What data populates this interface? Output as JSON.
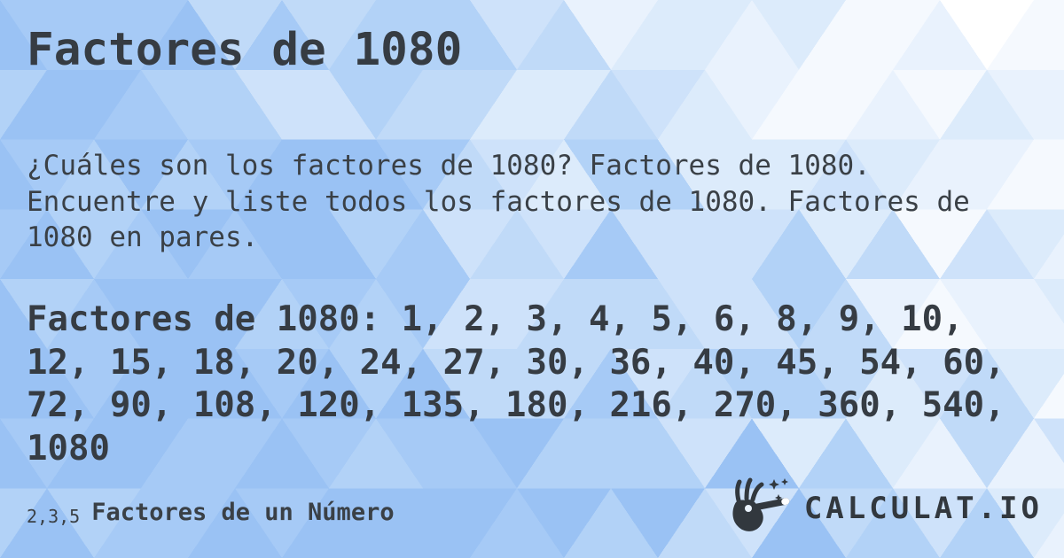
{
  "header": {
    "title": "Factores de 1080"
  },
  "description": {
    "full_text": "¿Cuáles son los factores de 1080? Factores de 1080. Encuentre y liste todos los factores de 1080. Factores de 1080 en pares.",
    "lines": [
      "¿Cuáles son los factores de 1080? Factores de 1080.",
      "Encuentre y liste todos los factores de 1080. Factores de",
      "1080 en pares."
    ]
  },
  "factors": {
    "full_text": "Factores de 1080: 1, 2, 3, 4, 5, 6, 8, 9, 10, 12, 15, 18, 20, 24, 27, 30, 36, 40, 45, 54, 60, 72, 90, 108, 120, 135, 180, 216, 270, 360, 540, 1080",
    "values": [
      1,
      2,
      3,
      4,
      5,
      6,
      8,
      9,
      10,
      12,
      15,
      18,
      20,
      24,
      27,
      30,
      36,
      40,
      45,
      54,
      60,
      72,
      90,
      108,
      120,
      135,
      180,
      216,
      270,
      360,
      540,
      1080
    ],
    "lines": [
      "Factores de 1080: 1, 2, 3, 4, 5, 6, 8, 9, 10,",
      "12, 15, 18, 20, 24, 27, 30, 36, 40, 45, 54, 60,",
      "72, 90, 108, 120, 135, 180, 216, 270, 360, 540,",
      "1080"
    ]
  },
  "footer": {
    "category_prefix": "2,3,5",
    "category_label": "Factores de un Número",
    "brand_text": "CALCULAT.IO",
    "brand_icon": "hand-magic-wand-icon"
  },
  "colors": {
    "text": "#3a4046",
    "title_text": "#363c43",
    "brand_text": "#32383e",
    "background_palette": [
      "#9ac2f4",
      "#a6caf6",
      "#b2d2f7",
      "#c0daf8",
      "#cee2fa",
      "#dcebfb",
      "#e9f2fd",
      "#f5f9fe",
      "#ffffff"
    ]
  }
}
